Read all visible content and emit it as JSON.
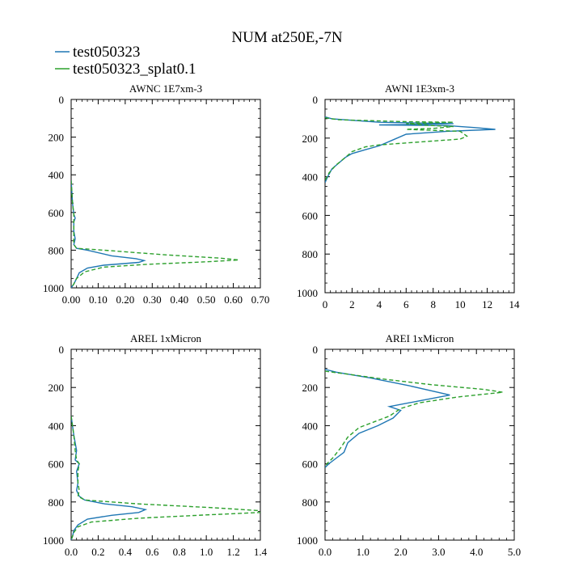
{
  "title": "NUM at250E,-7N",
  "legend": [
    {
      "label": "test050323",
      "color": "#1f77b4",
      "dash": "solid"
    },
    {
      "label": "test050323_splat0.1",
      "color": "#2ca02c",
      "dash": "dashed"
    }
  ],
  "chart_data": [
    {
      "type": "line",
      "title": "AWNC  1E7xm-3",
      "xlim": [
        0,
        0.7
      ],
      "ylim": [
        1000,
        0
      ],
      "xticks": [
        "0.00",
        "0.10",
        "0.20",
        "0.30",
        "0.40",
        "0.50",
        "0.60",
        "0.70"
      ],
      "xtick_values": [
        0,
        0.1,
        0.2,
        0.3,
        0.4,
        0.5,
        0.6,
        0.7
      ],
      "yticks": [
        "0",
        "200",
        "400",
        "600",
        "800",
        "1000"
      ],
      "ytick_values": [
        0,
        200,
        400,
        600,
        800,
        1000
      ],
      "series": [
        {
          "name": "test050323",
          "points": [
            [
              0,
              430
            ],
            [
              0.005,
              550
            ],
            [
              0.01,
              610
            ],
            [
              0.015,
              630
            ],
            [
              0.01,
              650
            ],
            [
              0.01,
              700
            ],
            [
              0.015,
              740
            ],
            [
              0.01,
              770
            ],
            [
              0.02,
              790
            ],
            [
              0.06,
              800
            ],
            [
              0.15,
              830
            ],
            [
              0.24,
              845
            ],
            [
              0.27,
              855
            ],
            [
              0.25,
              865
            ],
            [
              0.12,
              880
            ],
            [
              0.06,
              895
            ],
            [
              0.03,
              920
            ],
            [
              0.02,
              950
            ],
            [
              0.01,
              980
            ],
            [
              0,
              1000
            ]
          ]
        },
        {
          "name": "test050323_splat0.1",
          "points": [
            [
              0,
              430
            ],
            [
              0.005,
              550
            ],
            [
              0.01,
              610
            ],
            [
              0.01,
              630
            ],
            [
              0.01,
              700
            ],
            [
              0.01,
              770
            ],
            [
              0.02,
              790
            ],
            [
              0.12,
              800
            ],
            [
              0.35,
              825
            ],
            [
              0.55,
              842
            ],
            [
              0.62,
              852
            ],
            [
              0.5,
              862
            ],
            [
              0.28,
              875
            ],
            [
              0.12,
              890
            ],
            [
              0.05,
              915
            ],
            [
              0.02,
              950
            ],
            [
              0.01,
              980
            ],
            [
              0,
              1000
            ]
          ]
        }
      ]
    },
    {
      "type": "line",
      "title": "AWNI  1E3xm-3",
      "xlim": [
        0,
        14
      ],
      "ylim": [
        1000,
        0
      ],
      "xticks": [
        "0",
        "2",
        "4",
        "6",
        "8",
        "10",
        "12",
        "14"
      ],
      "xtick_values": [
        0,
        2,
        4,
        6,
        8,
        10,
        12,
        14
      ],
      "yticks": [
        "0",
        "200",
        "400",
        "600",
        "800",
        "1000"
      ],
      "ytick_values": [
        0,
        200,
        400,
        600,
        800,
        1000
      ],
      "series": [
        {
          "name": "test050323",
          "points": [
            [
              0,
              90
            ],
            [
              0.5,
              100
            ],
            [
              4,
              118
            ],
            [
              9.5,
              125
            ],
            [
              6,
              130
            ],
            [
              4,
              132
            ],
            [
              9,
              135
            ],
            [
              11,
              145
            ],
            [
              12.6,
              155
            ],
            [
              9,
              165
            ],
            [
              6,
              180
            ],
            [
              5,
              210
            ],
            [
              4,
              240
            ],
            [
              3,
              260
            ],
            [
              2,
              280
            ],
            [
              1.5,
              300
            ],
            [
              1,
              330
            ],
            [
              0.5,
              360
            ],
            [
              0.2,
              400
            ],
            [
              0,
              430
            ]
          ]
        },
        {
          "name": "test050323_splat0.1",
          "points": [
            [
              0,
              95
            ],
            [
              1,
              105
            ],
            [
              6,
              115
            ],
            [
              9.5,
              118
            ],
            [
              6,
              125
            ],
            [
              8,
              135
            ],
            [
              9.5,
              140
            ],
            [
              8,
              150
            ],
            [
              6,
              155
            ],
            [
              10,
              165
            ],
            [
              10.5,
              190
            ],
            [
              10,
              205
            ],
            [
              7,
              220
            ],
            [
              4,
              235
            ],
            [
              3,
              245
            ],
            [
              2,
              270
            ],
            [
              1.5,
              300
            ],
            [
              0.8,
              340
            ],
            [
              0.3,
              380
            ],
            [
              0,
              420
            ]
          ]
        }
      ]
    },
    {
      "type": "line",
      "title": "AREL  1xMicron",
      "xlim": [
        0,
        1.4
      ],
      "ylim": [
        1000,
        0
      ],
      "xticks": [
        "0.0",
        "0.2",
        "0.4",
        "0.6",
        "0.8",
        "1.0",
        "1.2",
        "1.4"
      ],
      "xtick_values": [
        0,
        0.2,
        0.4,
        0.6,
        0.8,
        1.0,
        1.2,
        1.4
      ],
      "yticks": [
        "0",
        "200",
        "400",
        "600",
        "800",
        "1000"
      ],
      "ytick_values": [
        0,
        200,
        400,
        600,
        800,
        1000
      ],
      "series": [
        {
          "name": "test050323",
          "points": [
            [
              0,
              350
            ],
            [
              0.02,
              450
            ],
            [
              0.04,
              530
            ],
            [
              0.03,
              580
            ],
            [
              0.06,
              600
            ],
            [
              0.04,
              640
            ],
            [
              0.05,
              700
            ],
            [
              0.04,
              740
            ],
            [
              0.06,
              770
            ],
            [
              0.1,
              790
            ],
            [
              0.25,
              810
            ],
            [
              0.45,
              825
            ],
            [
              0.55,
              840
            ],
            [
              0.5,
              855
            ],
            [
              0.3,
              870
            ],
            [
              0.12,
              890
            ],
            [
              0.05,
              920
            ],
            [
              0.02,
              950
            ],
            [
              0.01,
              980
            ],
            [
              0,
              1000
            ]
          ]
        },
        {
          "name": "test050323_splat0.1",
          "points": [
            [
              0,
              350
            ],
            [
              0.02,
              450
            ],
            [
              0.03,
              530
            ],
            [
              0.04,
              580
            ],
            [
              0.06,
              600
            ],
            [
              0.05,
              640
            ],
            [
              0.05,
              700
            ],
            [
              0.06,
              740
            ],
            [
              0.05,
              770
            ],
            [
              0.1,
              790
            ],
            [
              0.5,
              810
            ],
            [
              1.05,
              830
            ],
            [
              1.38,
              845
            ],
            [
              1.4,
              855
            ],
            [
              1.0,
              868
            ],
            [
              0.5,
              885
            ],
            [
              0.15,
              905
            ],
            [
              0.05,
              930
            ],
            [
              0.02,
              960
            ],
            [
              0,
              1000
            ]
          ]
        }
      ]
    },
    {
      "type": "line",
      "title": "AREI  1xMicron",
      "xlim": [
        0,
        5.0
      ],
      "ylim": [
        1000,
        0
      ],
      "xticks": [
        "0.0",
        "1.0",
        "2.0",
        "3.0",
        "4.0",
        "5.0"
      ],
      "xtick_values": [
        0,
        1,
        2,
        3,
        4,
        5
      ],
      "yticks": [
        "0",
        "200",
        "400",
        "600",
        "800",
        "1000"
      ],
      "ytick_values": [
        0,
        200,
        400,
        600,
        800,
        1000
      ],
      "series": [
        {
          "name": "test050323",
          "points": [
            [
              0,
              105
            ],
            [
              0.3,
              120
            ],
            [
              1.2,
              150
            ],
            [
              2.2,
              190
            ],
            [
              3.3,
              240
            ],
            [
              2.5,
              270
            ],
            [
              1.7,
              300
            ],
            [
              2.0,
              320
            ],
            [
              1.8,
              360
            ],
            [
              1.4,
              400
            ],
            [
              0.9,
              440
            ],
            [
              0.6,
              490
            ],
            [
              0.5,
              540
            ],
            [
              0.3,
              570
            ],
            [
              0.1,
              600
            ],
            [
              0,
              620
            ]
          ]
        },
        {
          "name": "test050323_splat0.1",
          "points": [
            [
              0,
              115
            ],
            [
              0.6,
              130
            ],
            [
              1.5,
              155
            ],
            [
              2.8,
              185
            ],
            [
              4.2,
              210
            ],
            [
              4.7,
              225
            ],
            [
              3.5,
              250
            ],
            [
              2.5,
              280
            ],
            [
              2.0,
              310
            ],
            [
              1.7,
              350
            ],
            [
              1.3,
              380
            ],
            [
              0.9,
              410
            ],
            [
              0.6,
              460
            ],
            [
              0.4,
              520
            ],
            [
              0.2,
              570
            ],
            [
              0.05,
              600
            ],
            [
              0,
              620
            ]
          ]
        }
      ]
    }
  ]
}
